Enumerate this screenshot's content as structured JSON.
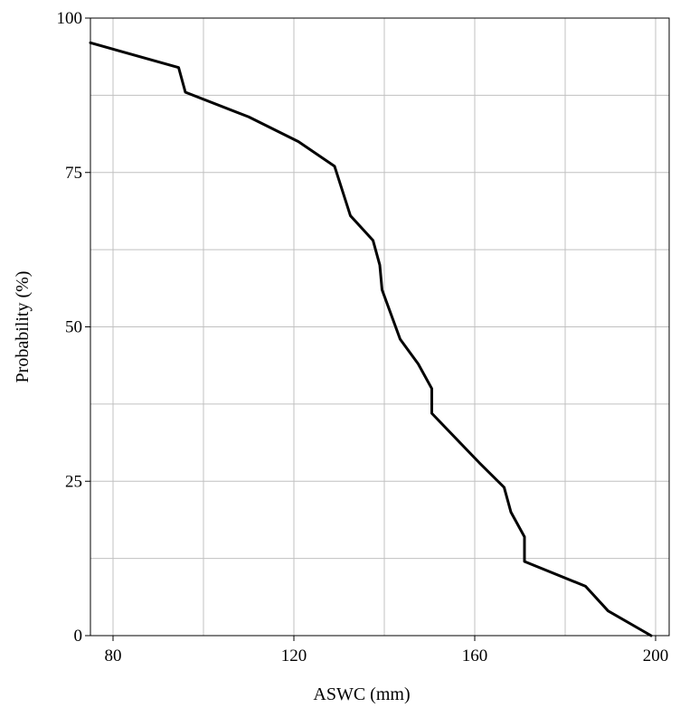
{
  "chart_data": {
    "type": "line",
    "title": "",
    "xlabel": "ASWC (mm)",
    "ylabel": "Probability (%)",
    "xlim": [
      75,
      203
    ],
    "ylim": [
      0,
      100
    ],
    "x_ticks": [
      {
        "value": 80,
        "label": "80"
      },
      {
        "value": 120,
        "label": "120"
      },
      {
        "value": 160,
        "label": "160"
      },
      {
        "value": 200,
        "label": "200"
      }
    ],
    "y_ticks": [
      {
        "value": 0,
        "label": "0"
      },
      {
        "value": 25,
        "label": "25"
      },
      {
        "value": 50,
        "label": "50"
      },
      {
        "value": 75,
        "label": "75"
      },
      {
        "value": 100,
        "label": "100"
      }
    ],
    "x_grid": [
      80,
      100,
      120,
      140,
      160,
      180,
      200
    ],
    "y_grid": [
      12.5,
      25,
      37.5,
      50,
      62.5,
      75,
      87.5
    ],
    "grid": true,
    "legend": "none",
    "colors": {
      "line": "#000000",
      "grid": "#c0c0c0",
      "frame": "#000000"
    },
    "series": [
      {
        "values": [
          {
            "x": 75,
            "y": 96
          },
          {
            "x": 94.5,
            "y": 92
          },
          {
            "x": 96,
            "y": 88
          },
          {
            "x": 110,
            "y": 84
          },
          {
            "x": 121,
            "y": 80
          },
          {
            "x": 129,
            "y": 76
          },
          {
            "x": 132.5,
            "y": 68
          },
          {
            "x": 137.5,
            "y": 64
          },
          {
            "x": 139,
            "y": 60
          },
          {
            "x": 139.5,
            "y": 56
          },
          {
            "x": 143.5,
            "y": 48
          },
          {
            "x": 147.5,
            "y": 44
          },
          {
            "x": 150.5,
            "y": 40
          },
          {
            "x": 150.5,
            "y": 36
          },
          {
            "x": 161,
            "y": 28
          },
          {
            "x": 166.5,
            "y": 24
          },
          {
            "x": 168,
            "y": 20
          },
          {
            "x": 171,
            "y": 16
          },
          {
            "x": 171,
            "y": 12
          },
          {
            "x": 184.5,
            "y": 8
          },
          {
            "x": 189.5,
            "y": 4
          },
          {
            "x": 199,
            "y": 0
          }
        ]
      }
    ]
  }
}
